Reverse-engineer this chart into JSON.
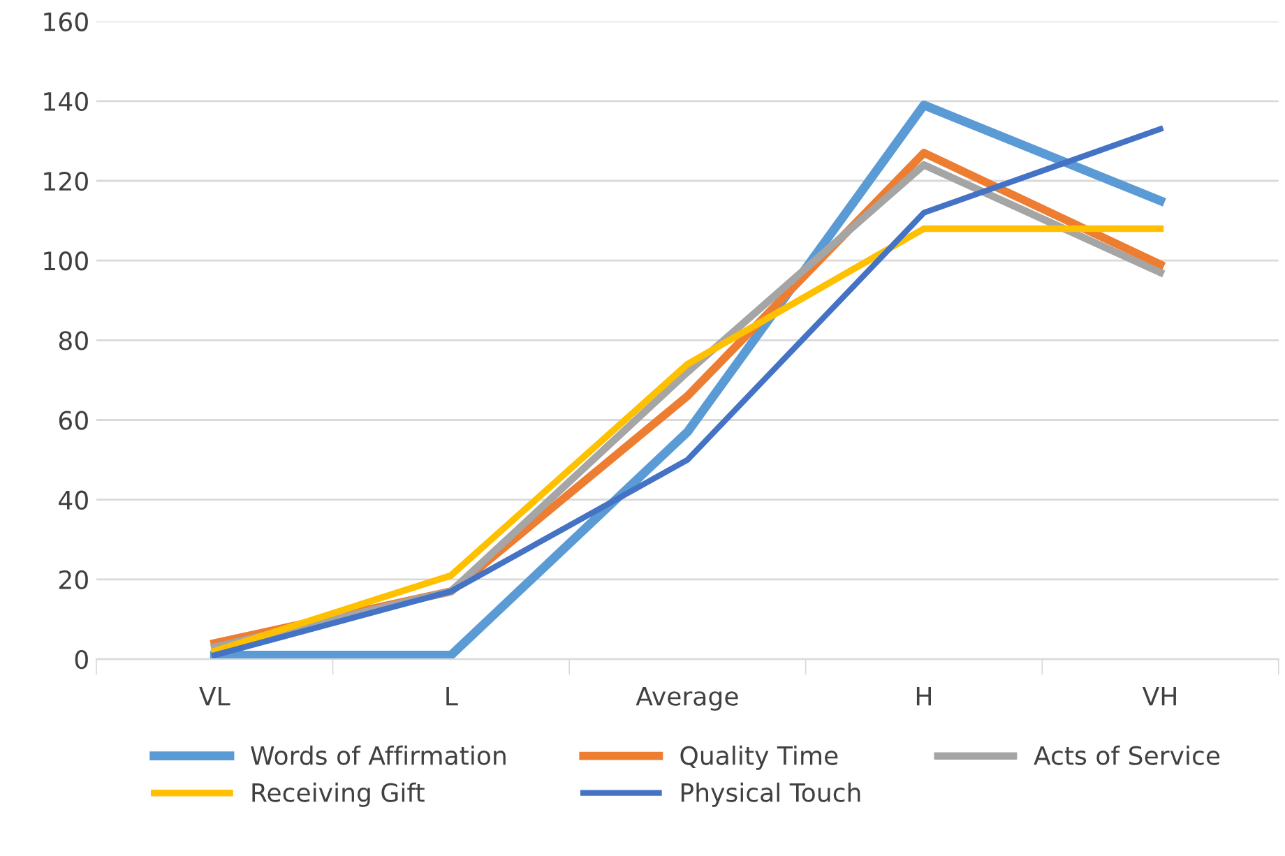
{
  "chart_data": {
    "type": "line",
    "categories": [
      "VL",
      "L",
      "Average",
      "H",
      "VH"
    ],
    "series": [
      {
        "name": "Words of Affirmation",
        "color": "#5b9bd5",
        "values": [
          1,
          1,
          57,
          139,
          115
        ]
      },
      {
        "name": "Quality Time",
        "color": "#ed7d31",
        "values": [
          4,
          17,
          66,
          127,
          99
        ]
      },
      {
        "name": "Acts of Service",
        "color": "#a5a5a5",
        "values": [
          3,
          17,
          72,
          124,
          97
        ]
      },
      {
        "name": "Receiving Gift",
        "color": "#ffc000",
        "values": [
          2,
          21,
          74,
          108,
          108
        ]
      },
      {
        "name": "Physical Touch",
        "color": "#4472c4",
        "values": [
          1,
          17,
          50,
          112,
          133
        ]
      }
    ],
    "ylim": [
      0,
      160
    ],
    "yticks": [
      0,
      20,
      40,
      60,
      80,
      100,
      120,
      140,
      160
    ],
    "grid": "y",
    "legend": "bottom",
    "marker": "none",
    "line_style": "solid"
  }
}
